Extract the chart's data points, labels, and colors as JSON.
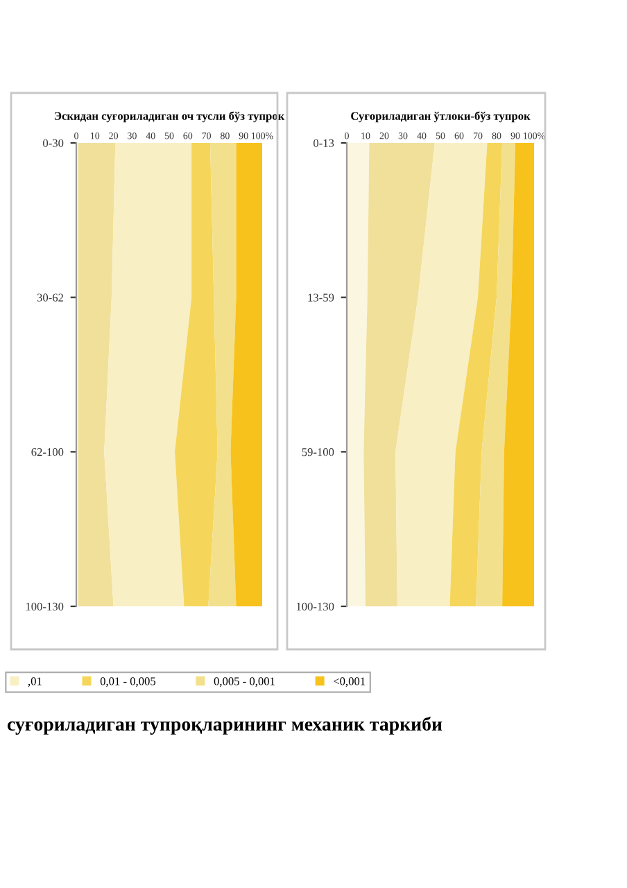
{
  "chart_data": [
    {
      "type": "area",
      "stacked": true,
      "orientation": "horizontal",
      "title": "Эскидан суғориладиган оч тусли бўз тупрок",
      "categories": [
        "0-30",
        "30-62",
        "62-100",
        "100-130"
      ],
      "xlim": [
        0,
        100
      ],
      "xticks": [
        0,
        10,
        20,
        30,
        40,
        50,
        60,
        70,
        80,
        90,
        {
          "value": 100,
          "label": "100%"
        }
      ],
      "grid": false,
      "legend": "bottom",
      "series": [
        {
          "color": "#fbf6e0",
          "values": [
            1,
            1,
            1,
            1
          ]
        },
        {
          "color": "#f1e09a",
          "values": [
            20,
            18,
            14,
            19
          ]
        },
        {
          "name": ",01",
          "color": "#f9efc4",
          "values": [
            41,
            43,
            38,
            38
          ]
        },
        {
          "name": "0,01 - 0,005",
          "color": "#f5d65a",
          "values": [
            10,
            12,
            23,
            13
          ]
        },
        {
          "name": "0,005 - 0,001",
          "color": "#f3e08c",
          "values": [
            14,
            12,
            7,
            15
          ]
        },
        {
          "name": "<0,001",
          "color": "#f8c21c",
          "values": [
            14,
            14,
            17,
            14
          ]
        }
      ],
      "annotations": [
        "суғориладиган тупроқларининг механик таркиби"
      ]
    },
    {
      "type": "area",
      "stacked": true,
      "orientation": "horizontal",
      "title": "Суғориладиган ўтлоки-бўз тупрок",
      "categories": [
        "0-13",
        "13-59",
        "59-100",
        "100-130"
      ],
      "xlim": [
        0,
        100
      ],
      "xticks": [
        0,
        10,
        20,
        30,
        40,
        50,
        60,
        70,
        80,
        90,
        {
          "value": 100,
          "label": "100%"
        }
      ],
      "grid": false,
      "series": [
        {
          "color": "#fbf6e0",
          "values": [
            12,
            11,
            9,
            10
          ]
        },
        {
          "color": "#f1e09a",
          "values": [
            35,
            27,
            17,
            17
          ]
        },
        {
          "color": "#f9efc4",
          "values": [
            28,
            32,
            32,
            28
          ]
        },
        {
          "color": "#f5d65a",
          "values": [
            8,
            10,
            14,
            14
          ]
        },
        {
          "color": "#f3e08c",
          "values": [
            7,
            8,
            12,
            14
          ]
        },
        {
          "color": "#f8c21c",
          "values": [
            10,
            12,
            16,
            17
          ]
        }
      ]
    }
  ]
}
